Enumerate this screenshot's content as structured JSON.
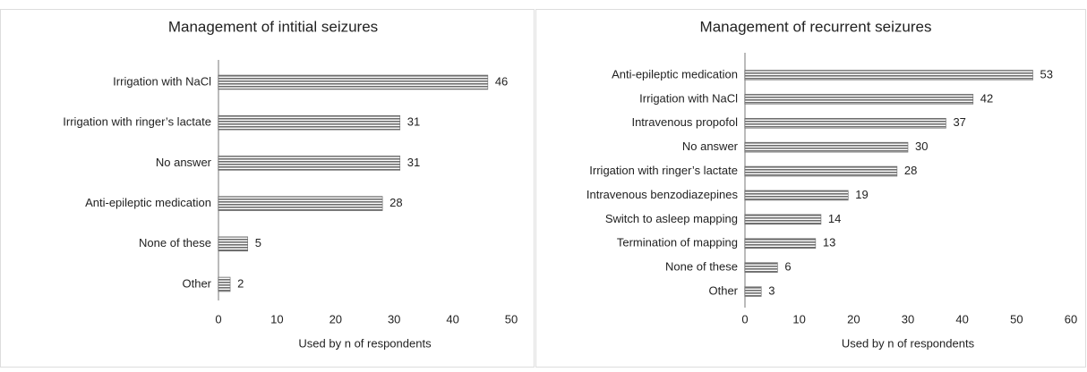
{
  "chart_data": [
    {
      "type": "barh",
      "title": "Management of intitial seizures",
      "categories": [
        "Irrigation with NaCl",
        "Irrigation with ringer’s lactate",
        "No answer",
        "Anti-epileptic medication",
        "None of these",
        "Other"
      ],
      "values": [
        46,
        31,
        31,
        28,
        5,
        2
      ],
      "color": "#6e6e6e",
      "xlim": [
        0,
        50
      ],
      "xticks": [
        0,
        10,
        20,
        30,
        40,
        50
      ],
      "xlabel": "Used by n of respondents"
    },
    {
      "type": "barh",
      "title": "Management of recurrent seizures",
      "categories": [
        "Anti-epileptic medication",
        "Irrigation with NaCl",
        "Intravenous propofol",
        "No answer",
        "Irrigation with ringer’s lactate",
        "Intravenous benzodiazepines",
        "Switch to asleep mapping",
        "Termination of mapping",
        "None of these",
        "Other"
      ],
      "values": [
        53,
        42,
        37,
        30,
        28,
        19,
        14,
        13,
        6,
        3
      ],
      "color": "#6e6e6e",
      "xlim": [
        0,
        60
      ],
      "xticks": [
        0,
        10,
        20,
        30,
        40,
        50,
        60
      ],
      "xlabel": "Used by n of respondents"
    }
  ]
}
